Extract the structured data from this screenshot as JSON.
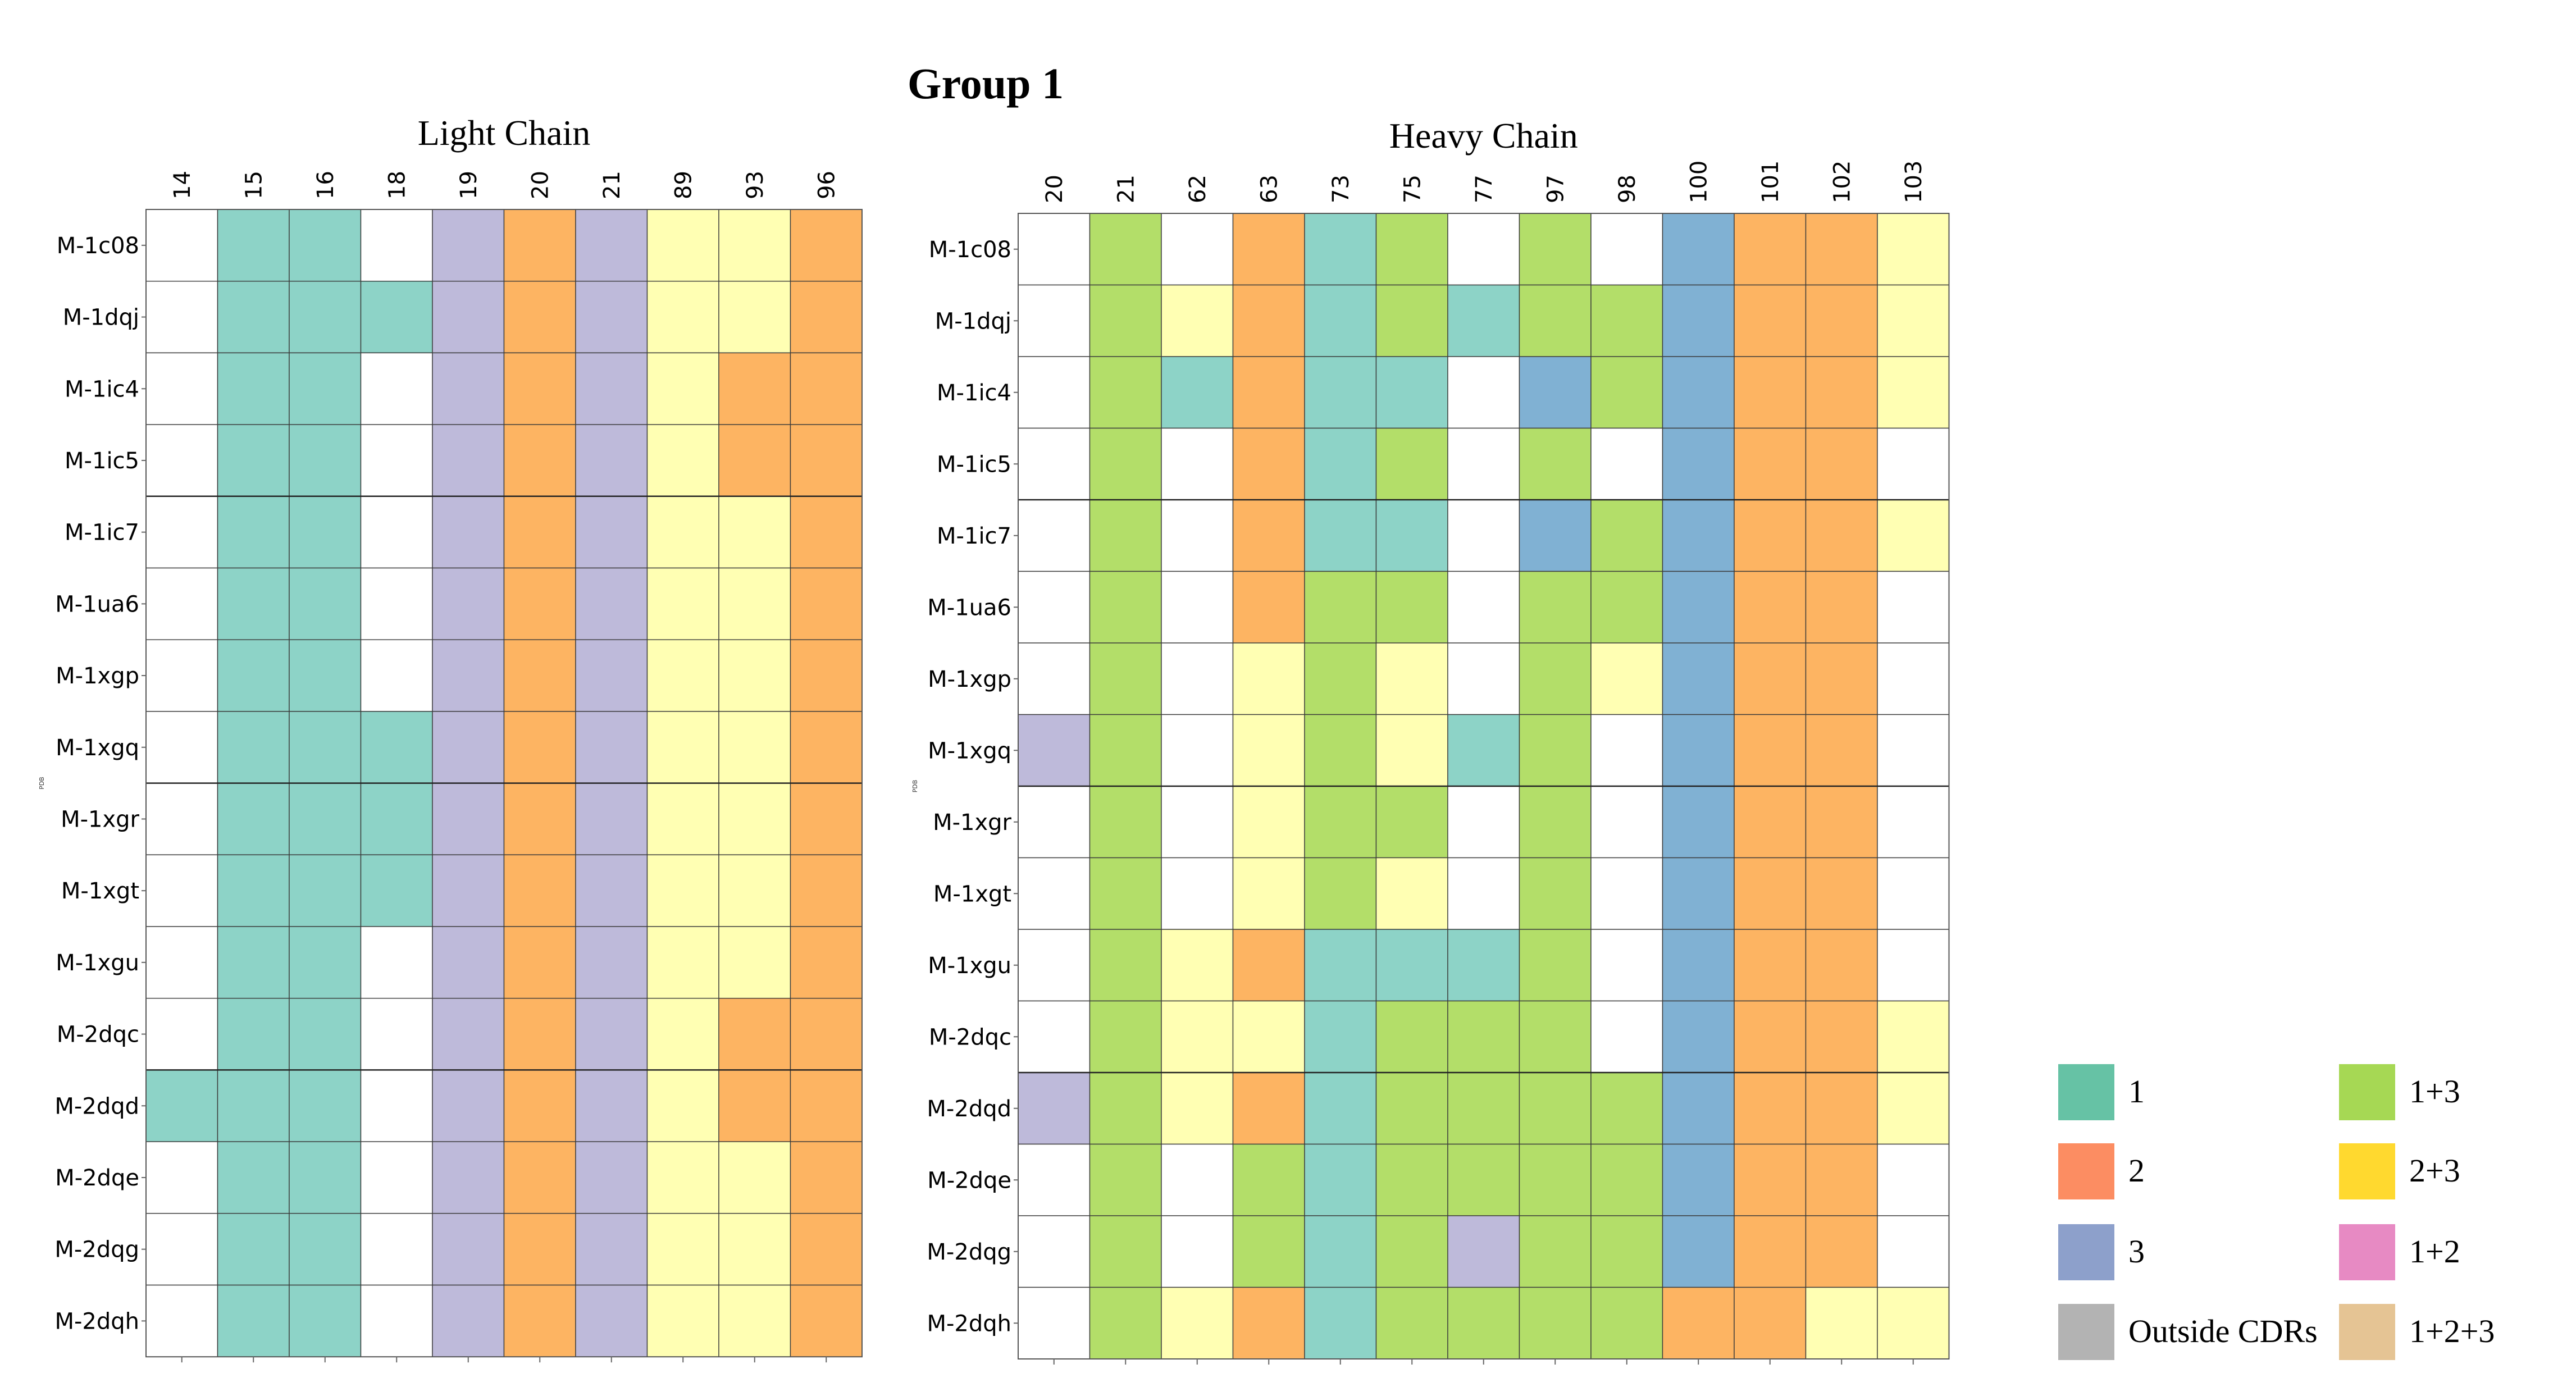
{
  "title": "Group 1",
  "legend": [
    {
      "label": "1",
      "color": "#66c2a5"
    },
    {
      "label": "2",
      "color": "#fc8d62"
    },
    {
      "label": "3",
      "color": "#8da0cb"
    },
    {
      "label": "Outside CDRs",
      "color": "#b3b3b3"
    },
    {
      "label": "1+3",
      "color": "#a6d854"
    },
    {
      "label": "2+3",
      "color": "#ffd92f"
    },
    {
      "label": "1+2",
      "color": "#e78ac3"
    },
    {
      "label": "1+2+3",
      "color": "#e5c494"
    }
  ],
  "chart_data": [
    {
      "type": "heatmap",
      "title": "Light Chain",
      "ylabel": "PDB",
      "colors": {
        "0": "#ffffff",
        "1": "#8dd3c7",
        "2": "#bebada",
        "3": "#fdb462",
        "4": "#ffffb3"
      },
      "x": [
        "14",
        "15",
        "16",
        "18",
        "19",
        "20",
        "21",
        "89",
        "93",
        "96"
      ],
      "y": [
        "M-1c08",
        "M-1dqj",
        "M-1ic4",
        "M-1ic5",
        "M-1ic7",
        "M-1ua6",
        "M-1xgp",
        "M-1xgq",
        "M-1xgr",
        "M-1xgt",
        "M-1xgu",
        "M-2dqc",
        "M-2dqd",
        "M-2dqe",
        "M-2dqg",
        "M-2dqh"
      ],
      "values": [
        [
          0,
          1,
          1,
          0,
          2,
          3,
          2,
          4,
          4,
          3
        ],
        [
          0,
          1,
          1,
          1,
          2,
          3,
          2,
          4,
          4,
          3
        ],
        [
          0,
          1,
          1,
          0,
          2,
          3,
          2,
          4,
          3,
          3
        ],
        [
          0,
          1,
          1,
          0,
          2,
          3,
          2,
          4,
          3,
          3
        ],
        [
          0,
          1,
          1,
          0,
          2,
          3,
          2,
          4,
          4,
          3
        ],
        [
          0,
          1,
          1,
          0,
          2,
          3,
          2,
          4,
          4,
          3
        ],
        [
          0,
          1,
          1,
          0,
          2,
          3,
          2,
          4,
          4,
          3
        ],
        [
          0,
          1,
          1,
          1,
          2,
          3,
          2,
          4,
          4,
          3
        ],
        [
          0,
          1,
          1,
          1,
          2,
          3,
          2,
          4,
          4,
          3
        ],
        [
          0,
          1,
          1,
          1,
          2,
          3,
          2,
          4,
          4,
          3
        ],
        [
          0,
          1,
          1,
          0,
          2,
          3,
          2,
          4,
          4,
          3
        ],
        [
          0,
          1,
          1,
          0,
          2,
          3,
          2,
          4,
          3,
          3
        ],
        [
          1,
          1,
          1,
          0,
          2,
          3,
          2,
          4,
          3,
          3
        ],
        [
          0,
          1,
          1,
          0,
          2,
          3,
          2,
          4,
          4,
          3
        ],
        [
          0,
          1,
          1,
          0,
          2,
          3,
          2,
          4,
          4,
          3
        ],
        [
          0,
          1,
          1,
          0,
          2,
          3,
          2,
          4,
          4,
          3
        ]
      ]
    },
    {
      "type": "heatmap",
      "title": "Heavy Chain",
      "ylabel": "PDB",
      "colors": {
        "0": "#ffffff",
        "1": "#8dd3c7",
        "2": "#bebada",
        "3": "#fdb462",
        "4": "#ffffb3",
        "5": "#b3de69",
        "6": "#80b1d3"
      },
      "x": [
        "20",
        "21",
        "62",
        "63",
        "73",
        "75",
        "77",
        "97",
        "98",
        "100",
        "101",
        "102",
        "103"
      ],
      "y": [
        "M-1c08",
        "M-1dqj",
        "M-1ic4",
        "M-1ic5",
        "M-1ic7",
        "M-1ua6",
        "M-1xgp",
        "M-1xgq",
        "M-1xgr",
        "M-1xgt",
        "M-1xgu",
        "M-2dqc",
        "M-2dqd",
        "M-2dqe",
        "M-2dqg",
        "M-2dqh"
      ],
      "values": [
        [
          0,
          5,
          0,
          3,
          1,
          5,
          0,
          5,
          0,
          6,
          3,
          3,
          4
        ],
        [
          0,
          5,
          4,
          3,
          1,
          5,
          1,
          5,
          5,
          6,
          3,
          3,
          4
        ],
        [
          0,
          5,
          1,
          3,
          1,
          1,
          0,
          6,
          5,
          6,
          3,
          3,
          4
        ],
        [
          0,
          5,
          0,
          3,
          1,
          5,
          0,
          5,
          0,
          6,
          3,
          3,
          0
        ],
        [
          0,
          5,
          0,
          3,
          1,
          1,
          0,
          6,
          5,
          6,
          3,
          3,
          4
        ],
        [
          0,
          5,
          0,
          3,
          5,
          5,
          0,
          5,
          5,
          6,
          3,
          3,
          0
        ],
        [
          0,
          5,
          0,
          4,
          5,
          4,
          0,
          5,
          4,
          6,
          3,
          3,
          0
        ],
        [
          2,
          5,
          0,
          4,
          5,
          4,
          1,
          5,
          0,
          6,
          3,
          3,
          0
        ],
        [
          0,
          5,
          0,
          4,
          5,
          5,
          0,
          5,
          0,
          6,
          3,
          3,
          0
        ],
        [
          0,
          5,
          0,
          4,
          5,
          4,
          0,
          5,
          0,
          6,
          3,
          3,
          0
        ],
        [
          0,
          5,
          4,
          3,
          1,
          1,
          1,
          5,
          0,
          6,
          3,
          3,
          0
        ],
        [
          0,
          5,
          4,
          4,
          1,
          5,
          5,
          5,
          0,
          6,
          3,
          3,
          4
        ],
        [
          2,
          5,
          4,
          3,
          1,
          5,
          5,
          5,
          5,
          6,
          3,
          3,
          4
        ],
        [
          0,
          5,
          0,
          5,
          1,
          5,
          5,
          5,
          5,
          6,
          3,
          3,
          0
        ],
        [
          0,
          5,
          0,
          5,
          1,
          5,
          2,
          5,
          5,
          6,
          3,
          3,
          0
        ],
        [
          0,
          5,
          4,
          3,
          1,
          5,
          5,
          5,
          5,
          3,
          3,
          4,
          4
        ]
      ]
    }
  ]
}
